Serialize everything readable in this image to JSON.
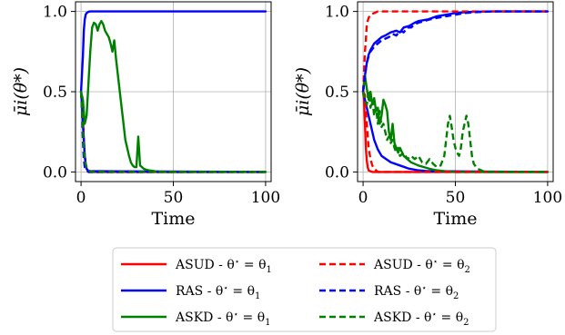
{
  "chart_data": [
    {
      "type": "line",
      "panel": "left",
      "xlabel": "Time",
      "ylabel": "μ̄i(θ*)",
      "xlim": [
        -3,
        103
      ],
      "ylim": [
        -0.06,
        1.06
      ],
      "xticks": [
        0,
        50,
        100
      ],
      "xtick_labels": [
        "0",
        "50",
        "100"
      ],
      "yticks": [
        0.0,
        0.5,
        1.0
      ],
      "ytick_labels": [
        "0.0",
        "0.5",
        "1.0"
      ],
      "grid": true,
      "series": [
        {
          "name": "ASUD - θ* = θ1",
          "color": "#ff0000",
          "style": "solid",
          "x": [
            0,
            0.5,
            1,
            1.5,
            2,
            2.5,
            3,
            4,
            5,
            100
          ],
          "y": [
            0.5,
            0.47,
            0.35,
            0.2,
            0.1,
            0.05,
            0.02,
            0.005,
            0,
            0
          ]
        },
        {
          "name": "RAS - θ* = θ1",
          "color": "#0000ff",
          "style": "solid",
          "x": [
            0,
            1,
            1.5,
            2,
            2.5,
            3,
            4,
            5,
            6,
            100
          ],
          "y": [
            0.5,
            0.72,
            0.88,
            0.95,
            0.98,
            0.99,
            0.998,
            1.0,
            1.0,
            1.0
          ],
          "extra": {
            "x2": [
              0,
              0.5,
              1,
              1.5,
              2,
              2.5,
              3,
              4,
              100
            ],
            "y2": [
              0.5,
              0.42,
              0.3,
              0.2,
              0.1,
              0.05,
              0.02,
              0.005,
              0
            ]
          }
        },
        {
          "name": "ASKD - θ* = θ1",
          "color": "#008000",
          "style": "solid",
          "x": [
            0,
            1,
            2,
            3,
            4,
            5,
            6,
            7,
            8,
            9,
            10,
            11,
            12,
            13,
            14,
            15,
            16,
            17,
            18,
            19,
            20,
            21,
            22,
            23,
            24,
            25,
            26,
            27,
            28,
            29,
            30,
            31,
            32,
            33,
            34,
            35,
            37,
            40,
            45,
            100
          ],
          "y": [
            0.5,
            0.45,
            0.3,
            0.35,
            0.55,
            0.75,
            0.9,
            0.93,
            0.92,
            0.88,
            0.92,
            0.94,
            0.92,
            0.88,
            0.86,
            0.84,
            0.8,
            0.75,
            0.82,
            0.7,
            0.6,
            0.5,
            0.4,
            0.3,
            0.2,
            0.15,
            0.1,
            0.06,
            0.04,
            0.03,
            0.03,
            0.22,
            0.04,
            0.03,
            0.02,
            0.015,
            0.01,
            0.005,
            0,
            0
          ]
        },
        {
          "name": "ASUD - θ* = θ2",
          "color": "#ff0000",
          "style": "dashed",
          "x": [
            0,
            0.5,
            1,
            1.5,
            2,
            2.5,
            3,
            4,
            100
          ],
          "y": [
            0.5,
            0.4,
            0.25,
            0.12,
            0.05,
            0.02,
            0.01,
            0,
            0
          ]
        },
        {
          "name": "RAS - θ* = θ2",
          "color": "#0000ff",
          "style": "dashed",
          "x": [
            0,
            0.5,
            1,
            1.5,
            2,
            3,
            4,
            100
          ],
          "y": [
            0.5,
            0.38,
            0.2,
            0.08,
            0.03,
            0.01,
            0,
            0
          ]
        },
        {
          "name": "ASKD - θ* = θ2",
          "color": "#008000",
          "style": "dashed",
          "x": [
            0,
            0.5,
            1,
            1.5,
            2,
            3,
            4,
            5,
            6,
            100
          ],
          "y": [
            0.5,
            0.4,
            0.28,
            0.15,
            0.07,
            0.03,
            0.01,
            0.005,
            0,
            0
          ]
        }
      ]
    },
    {
      "type": "line",
      "panel": "right",
      "xlabel": "Time",
      "ylabel": "μ̄i(θ*)",
      "xlim": [
        -3,
        103
      ],
      "ylim": [
        -0.06,
        1.06
      ],
      "xticks": [
        0,
        50,
        100
      ],
      "xtick_labels": [
        "0",
        "50",
        "100"
      ],
      "yticks": [
        0.0,
        0.5,
        1.0
      ],
      "ytick_labels": [
        "0.0",
        "0.5",
        "1.0"
      ],
      "grid": true,
      "series": [
        {
          "name": "ASUD - θ* = θ1",
          "color": "#ff0000",
          "style": "solid",
          "x": [
            0,
            0.5,
            1,
            1.5,
            2,
            2.5,
            3,
            4,
            5,
            100
          ],
          "y": [
            0.5,
            0.45,
            0.3,
            0.15,
            0.07,
            0.03,
            0.01,
            0.004,
            0,
            0
          ]
        },
        {
          "name": "RAS - θ* = θ1",
          "color": "#0000ff",
          "style": "solid",
          "x": [
            0,
            1,
            2,
            3,
            4,
            6,
            8,
            10,
            12,
            15,
            18,
            20,
            22,
            25,
            28,
            30,
            35,
            40,
            45,
            50,
            55,
            60,
            70,
            80,
            100
          ],
          "y": [
            0.5,
            0.6,
            0.68,
            0.73,
            0.76,
            0.8,
            0.82,
            0.84,
            0.85,
            0.87,
            0.88,
            0.87,
            0.9,
            0.91,
            0.93,
            0.94,
            0.95,
            0.97,
            0.98,
            0.99,
            0.995,
            0.998,
            1.0,
            1.0,
            1.0
          ],
          "extra": {
            "x2": [
              0,
              2,
              4,
              6,
              8,
              10,
              15,
              20,
              25,
              30,
              35,
              100
            ],
            "y2": [
              0.5,
              0.4,
              0.3,
              0.2,
              0.14,
              0.1,
              0.06,
              0.04,
              0.02,
              0.01,
              0.005,
              0
            ]
          }
        },
        {
          "name": "ASKD - θ* = θ1",
          "color": "#008000",
          "style": "solid",
          "x": [
            0,
            1,
            2,
            3,
            4,
            5,
            6,
            7,
            8,
            9,
            10,
            11,
            12,
            13,
            14,
            15,
            16,
            17,
            18,
            19,
            20,
            22,
            24,
            26,
            28,
            30,
            33,
            36,
            40,
            45,
            50,
            100
          ],
          "y": [
            0.5,
            0.6,
            0.52,
            0.45,
            0.5,
            0.42,
            0.46,
            0.38,
            0.4,
            0.3,
            0.35,
            0.45,
            0.42,
            0.38,
            0.25,
            0.2,
            0.3,
            0.18,
            0.15,
            0.12,
            0.15,
            0.1,
            0.08,
            0.06,
            0.05,
            0.04,
            0.03,
            0.02,
            0.01,
            0.004,
            0,
            0
          ]
        },
        {
          "name": "ASUD - θ* = θ2",
          "color": "#ff0000",
          "style": "dashed",
          "x": [
            0,
            0.5,
            1,
            1.5,
            2,
            3,
            4,
            6,
            8,
            10,
            100
          ],
          "y": [
            0.5,
            0.62,
            0.75,
            0.82,
            0.92,
            0.96,
            0.98,
            0.99,
            1.0,
            1.0,
            1.0
          ],
          "extra": {
            "x2": [
              0,
              1,
              2,
              3,
              4,
              5,
              6,
              8,
              100
            ],
            "y2": [
              0.5,
              0.48,
              0.3,
              0.15,
              0.08,
              0.04,
              0.02,
              0,
              0
            ]
          }
        },
        {
          "name": "RAS - θ* = θ2",
          "color": "#0000ff",
          "style": "dashed",
          "x": [
            0,
            1,
            2,
            3,
            4,
            6,
            8,
            10,
            12,
            14,
            16,
            18,
            20,
            22,
            24,
            26,
            28,
            30,
            33,
            36,
            40,
            45,
            50,
            55,
            60,
            70,
            100
          ],
          "y": [
            0.5,
            0.6,
            0.68,
            0.72,
            0.75,
            0.78,
            0.8,
            0.82,
            0.83,
            0.84,
            0.86,
            0.85,
            0.88,
            0.87,
            0.9,
            0.9,
            0.92,
            0.93,
            0.94,
            0.95,
            0.96,
            0.97,
            0.98,
            0.99,
            0.995,
            1.0,
            1.0
          ]
        },
        {
          "name": "ASKD - θ* = θ2",
          "color": "#008000",
          "style": "dashed",
          "x": [
            0,
            1,
            2,
            3,
            4,
            5,
            6,
            7,
            8,
            9,
            10,
            11,
            12,
            13,
            14,
            15,
            16,
            17,
            18,
            19,
            20,
            22,
            24,
            26,
            28,
            30,
            32,
            34,
            36,
            38,
            40,
            42,
            44,
            45,
            46,
            47,
            48,
            49,
            50,
            51,
            52,
            53,
            54,
            55,
            56,
            57,
            58,
            59,
            60,
            62,
            64,
            66,
            100
          ],
          "y": [
            0.5,
            0.45,
            0.42,
            0.5,
            0.4,
            0.45,
            0.35,
            0.4,
            0.3,
            0.38,
            0.28,
            0.3,
            0.25,
            0.2,
            0.22,
            0.18,
            0.2,
            0.15,
            0.12,
            0.15,
            0.1,
            0.12,
            0.08,
            0.1,
            0.08,
            0.1,
            0.06,
            0.05,
            0.08,
            0.05,
            0.03,
            0.04,
            0.1,
            0.2,
            0.3,
            0.35,
            0.28,
            0.2,
            0.15,
            0.12,
            0.1,
            0.15,
            0.25,
            0.3,
            0.35,
            0.3,
            0.2,
            0.1,
            0.05,
            0.02,
            0.01,
            0,
            0
          ]
        }
      ]
    }
  ],
  "legend": {
    "placement": "bottom-center",
    "entries": [
      {
        "label_parts": [
          "ASUD - θ",
          "⋆",
          " = θ",
          "1"
        ],
        "color": "#ff0000",
        "style": "solid"
      },
      {
        "label_parts": [
          "ASUD - θ",
          "⋆",
          " = θ",
          "2"
        ],
        "color": "#ff0000",
        "style": "dashed"
      },
      {
        "label_parts": [
          "RAS - θ",
          "⋆",
          " = θ",
          "1"
        ],
        "color": "#0000ff",
        "style": "solid"
      },
      {
        "label_parts": [
          "RAS - θ",
          "⋆",
          " = θ",
          "2"
        ],
        "color": "#0000ff",
        "style": "dashed"
      },
      {
        "label_parts": [
          "ASKD - θ",
          "⋆",
          " = θ",
          "1"
        ],
        "color": "#008000",
        "style": "solid"
      },
      {
        "label_parts": [
          "ASKD - θ",
          "⋆",
          " = θ",
          "2"
        ],
        "color": "#008000",
        "style": "dashed"
      }
    ]
  }
}
